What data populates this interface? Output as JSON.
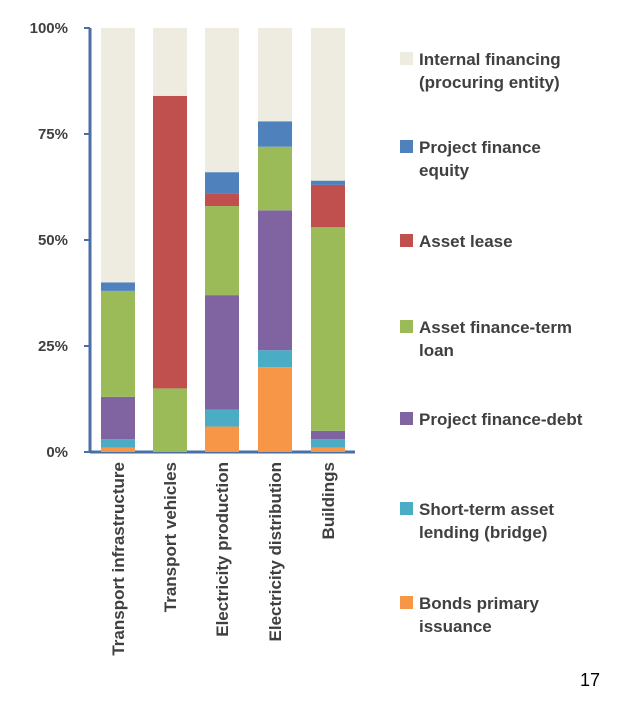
{
  "chart_data": {
    "type": "stacked_bar",
    "categories": [
      "Transport infrastructure",
      "Transport vehicles",
      "Electricity production",
      "Electricity distribution",
      "Buildings"
    ],
    "series": [
      {
        "name": "Bonds primary issuance",
        "color": "#f79646",
        "values": [
          1,
          0,
          6,
          20,
          1
        ]
      },
      {
        "name": "Short-term asset lending (bridge)",
        "color": "#4bacc6",
        "values": [
          2,
          0,
          4,
          4,
          2
        ]
      },
      {
        "name": "Project finance-debt",
        "color": "#8064a2",
        "values": [
          10,
          0,
          27,
          33,
          2
        ]
      },
      {
        "name": "Asset finance-term loan",
        "color": "#9bbb59",
        "values": [
          25,
          15,
          21,
          15,
          48
        ]
      },
      {
        "name": "Asset lease",
        "color": "#c0504d",
        "values": [
          0,
          69,
          3,
          0,
          10
        ]
      },
      {
        "name": "Project finance equity",
        "color": "#4f81bd",
        "values": [
          2,
          0,
          5,
          6,
          1
        ]
      },
      {
        "name": "Internal financing (procuring entity)",
        "color": "#eeece1",
        "values": [
          60,
          16,
          34,
          22,
          36
        ]
      }
    ],
    "ylim": [
      0,
      100
    ],
    "yticks": [
      {
        "value": 0,
        "label": "0%"
      },
      {
        "value": 25,
        "label": "25%"
      },
      {
        "value": 50,
        "label": "50%"
      },
      {
        "value": 75,
        "label": "75%"
      },
      {
        "value": 100,
        "label": "100%"
      }
    ],
    "page_number": "17"
  }
}
